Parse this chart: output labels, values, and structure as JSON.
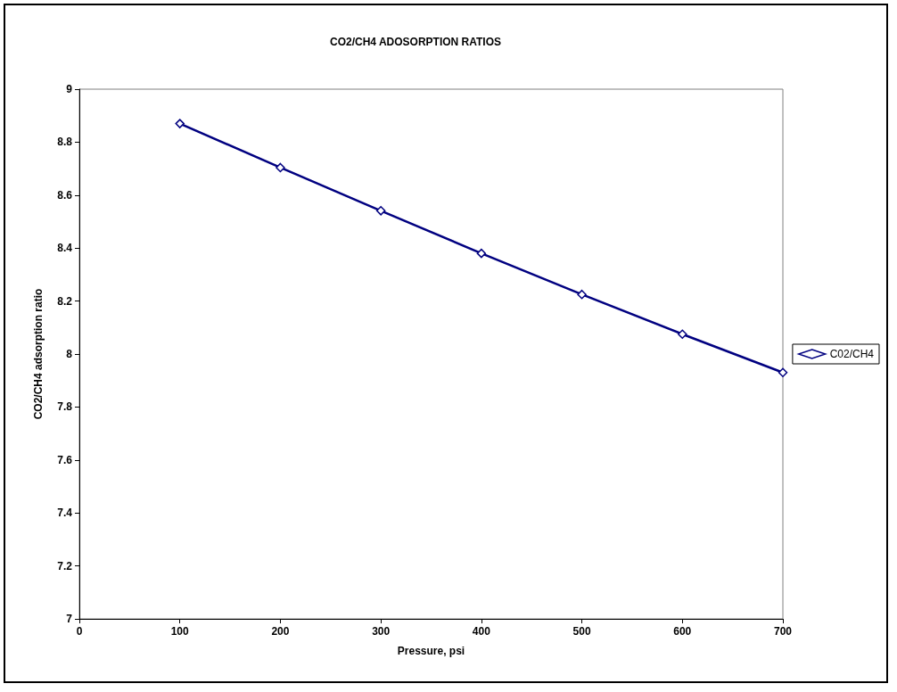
{
  "chart_data": {
    "type": "line",
    "title": "CO2/CH4 ADOSORPTION RATIOS",
    "xlabel": "Pressure, psi",
    "ylabel": "CO2/CH4 adsorption ratio",
    "x": [
      100,
      200,
      300,
      400,
      500,
      600,
      700
    ],
    "series": [
      {
        "name": "C02/CH4",
        "color": "#000080",
        "values": [
          8.87,
          8.704,
          8.541,
          8.38,
          8.225,
          8.075,
          7.93
        ]
      }
    ],
    "xlim": [
      0,
      700
    ],
    "xticks": [
      0,
      100,
      200,
      300,
      400,
      500,
      600,
      700
    ],
    "ylim": [
      7,
      9
    ],
    "yticks": [
      7,
      7.2,
      7.4,
      7.6,
      7.8,
      8,
      8.2,
      8.4,
      8.6,
      8.8,
      9
    ],
    "grid": false,
    "legend": "right",
    "marker": "diamond",
    "line_style": "solid"
  }
}
